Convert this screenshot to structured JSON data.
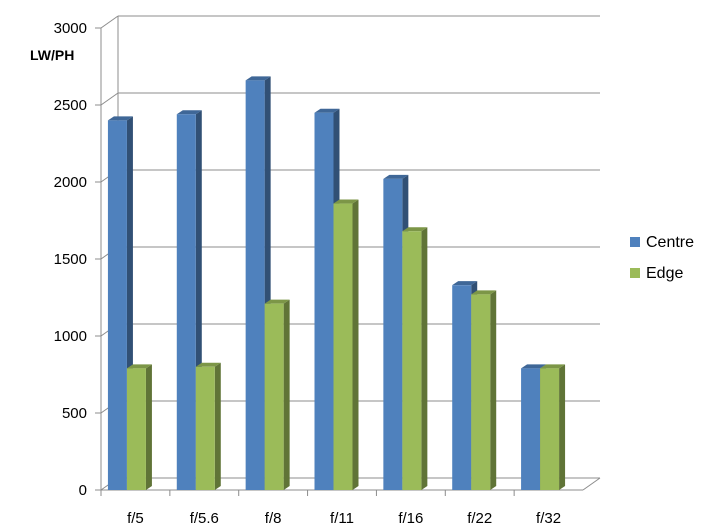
{
  "chart_data": {
    "type": "bar",
    "ylabel": "LW/PH",
    "ylim": [
      0,
      3000
    ],
    "yticks": [
      0,
      500,
      1000,
      1500,
      2000,
      2500,
      3000
    ],
    "categories": [
      "f/5",
      "f/5.6",
      "f/8",
      "f/11",
      "f/16",
      "f/22",
      "f/32"
    ],
    "series": [
      {
        "name": "Centre",
        "color": "#4f81bd",
        "values": [
          2400,
          2440,
          2660,
          2450,
          2020,
          1330,
          790
        ]
      },
      {
        "name": "Edge",
        "color": "#9bbb59",
        "values": [
          790,
          800,
          1210,
          1860,
          1680,
          1270,
          790
        ]
      }
    ],
    "grid": true,
    "legend_position": "right",
    "style": "3d-clustered-column"
  }
}
